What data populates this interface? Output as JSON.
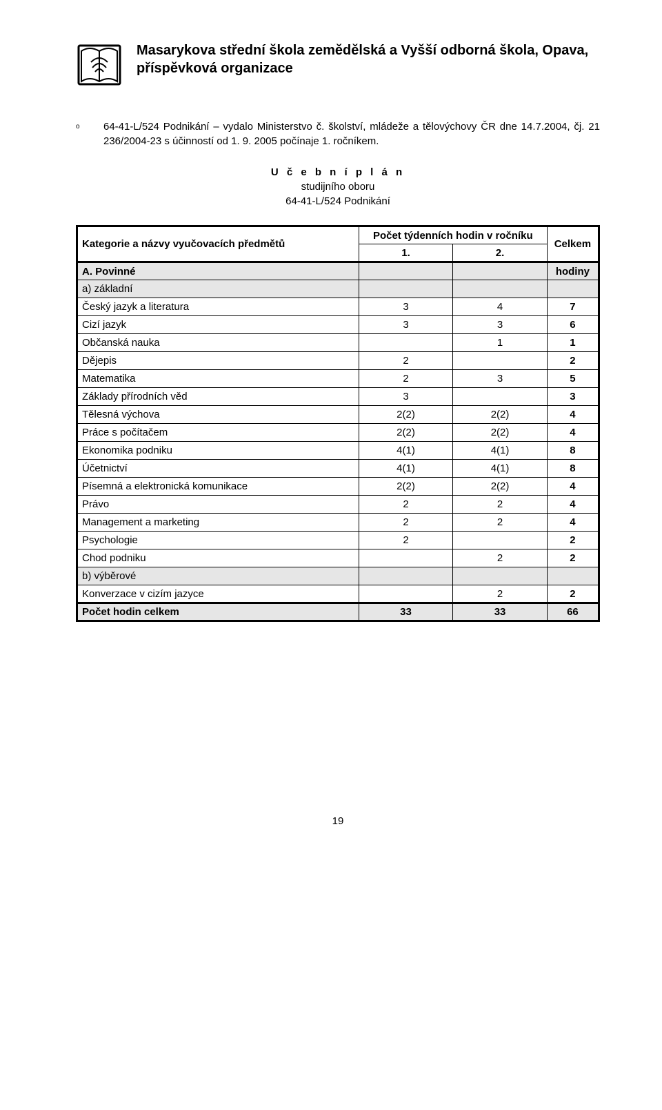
{
  "header": {
    "title": "Masarykova střední škola zemědělská a Vyšší odborná škola, Opava, příspěvková organizace"
  },
  "intro": {
    "bullet": "o",
    "text": "64-41-L/524 Podnikání  – vydalo Ministerstvo č. školství, mládeže a tělovýchovy ČR dne 14.7.2004, čj. 21 236/2004-23 s účinností od 1. 9. 2005 počínaje 1. ročníkem."
  },
  "plan": {
    "title": "U č e b n í   p l á n",
    "subtitle1": "studijního oboru",
    "subtitle2": "64-41-L/524 Podnikání"
  },
  "table": {
    "head": {
      "cat": "Kategorie a názvy vyučovacích předmětů",
      "count": "Počet týdenních hodin v ročníku",
      "total": "Celkem",
      "c1": "1.",
      "c2": "2."
    },
    "sectionA": {
      "label": "A. Povinné",
      "right": "hodiny"
    },
    "subA": {
      "label": "a) základní"
    },
    "rows": [
      {
        "name": "Český jazyk a literatura",
        "c1": "3",
        "c2": "4",
        "t": "7",
        "tb": true
      },
      {
        "name": "Cizí jazyk",
        "c1": "3",
        "c2": "3",
        "t": "6",
        "tb": true
      },
      {
        "name": "Občanská nauka",
        "c1": "",
        "c2": "1",
        "t": "1",
        "tb": true
      },
      {
        "name": "Dějepis",
        "c1": "2",
        "c2": "",
        "t": "2",
        "tb": true
      },
      {
        "name": "Matematika",
        "c1": "2",
        "c2": "3",
        "t": "5",
        "tb": true
      },
      {
        "name": "Základy přírodních věd",
        "c1": "3",
        "c2": "",
        "t": "3",
        "tb": true
      },
      {
        "name": "Tělesná výchova",
        "c1": "2(2)",
        "c2": "2(2)",
        "t": "4",
        "tb": true
      },
      {
        "name": "Práce s počítačem",
        "c1": "2(2)",
        "c2": "2(2)",
        "t": "4",
        "tb": true
      },
      {
        "name": "Ekonomika podniku",
        "c1": "4(1)",
        "c2": "4(1)",
        "t": "8",
        "tb": true
      },
      {
        "name": "Účetnictví",
        "c1": "4(1)",
        "c2": "4(1)",
        "t": "8",
        "tb": true
      },
      {
        "name": "Písemná a elektronická komunikace",
        "c1": "2(2)",
        "c2": "2(2)",
        "t": "4",
        "tb": true
      },
      {
        "name": "Právo",
        "c1": "2",
        "c2": "2",
        "t": "4",
        "tb": true
      },
      {
        "name": "Management a marketing",
        "c1": "2",
        "c2": "2",
        "t": "4",
        "tb": true
      },
      {
        "name": "Psychologie",
        "c1": "2",
        "c2": "",
        "t": "2",
        "tb": true
      },
      {
        "name": "Chod podniku",
        "c1": "",
        "c2": "2",
        "t": "2",
        "tb": true
      }
    ],
    "subB": {
      "label": "b) výběrové"
    },
    "rowsB": [
      {
        "name": "Konverzace v cizím jazyce",
        "c1": "",
        "c2": "2",
        "t": "2",
        "tb": true
      }
    ],
    "total": {
      "label": "Počet hodin celkem",
      "c1": "33",
      "c2": "33",
      "t": "66"
    }
  },
  "pageNumber": "19"
}
